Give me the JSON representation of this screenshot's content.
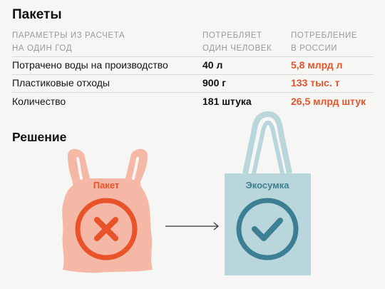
{
  "title": "Пакеты",
  "table": {
    "headers": {
      "params": [
        "ПАРАМЕТРЫ ИЗ РАСЧЕТА",
        "НА ОДИН ГОД"
      ],
      "per_person": [
        "ПОТРЕБЛЯЕТ",
        "ОДИН ЧЕЛОВЕК"
      ],
      "russia": [
        "ПОТРЕБЛЕНИЕ",
        "В РОССИИ"
      ]
    },
    "rows": [
      {
        "label": "Потрачено воды на производство",
        "per_person": "40 л",
        "russia": "5,8 млрд л"
      },
      {
        "label": "Пластиковые отходы",
        "per_person": "900 г",
        "russia": "133 тыс. т"
      },
      {
        "label": "Количество",
        "per_person": "181 штука",
        "russia": "26,5 млрд штук"
      }
    ]
  },
  "solution": {
    "title": "Решение",
    "bag_label": "Пакет",
    "ecobag_label": "Экосумка"
  },
  "colors": {
    "accent": "#e8532a",
    "plastic_bag": "#f6b8a6",
    "eco_bag": "#b9d6dc",
    "eco_dark": "#3d7f92"
  },
  "icons": {
    "bag": "cross-icon",
    "ecobag": "checkmark-icon",
    "arrow": "arrow-right-icon"
  }
}
